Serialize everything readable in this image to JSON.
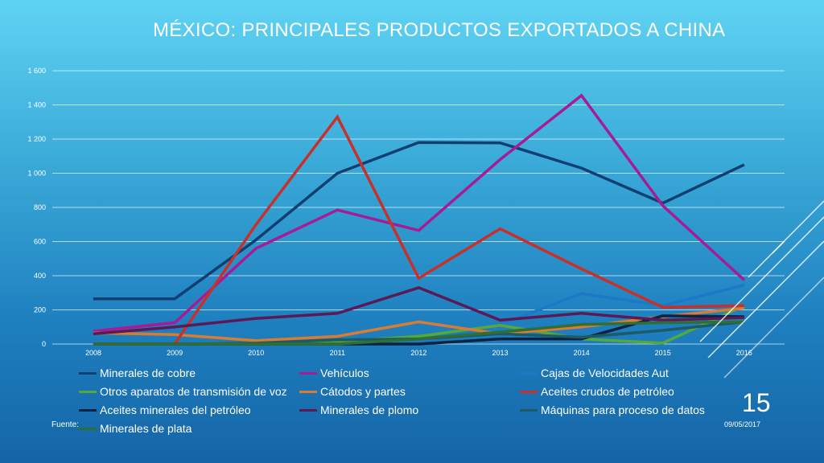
{
  "slide": {
    "title": "MÉXICO: PRINCIPALES PRODUCTOS EXPORTADOS A CHINA",
    "number": "15",
    "date": "09/05/2017",
    "source_label": "Fuente:"
  },
  "colors": {
    "background_top": "#5fd3f3",
    "background_bottom": "#1565a6",
    "gridline": "#ffffff"
  },
  "chart_data": {
    "type": "line",
    "title": "MÉXICO: PRINCIPALES PRODUCTOS EXPORTADOS A CHINA",
    "xlabel": "",
    "ylabel": "",
    "ylim": [
      0,
      1600
    ],
    "y_ticks": [
      "0",
      "200",
      "400",
      "600",
      "800",
      "1 000",
      "1 200",
      "1 400",
      "1 600"
    ],
    "y_tick_values": [
      0,
      200,
      400,
      600,
      800,
      1000,
      1200,
      1400,
      1600
    ],
    "grid": true,
    "legend_position": "bottom",
    "categories": [
      "2008",
      "2009",
      "2010",
      "2011",
      "2012",
      "2013",
      "2014",
      "2015",
      "2016"
    ],
    "series": [
      {
        "name": "Minerales de cobre",
        "color": "#123f72",
        "values": [
          265,
          265,
          610,
          1000,
          1180,
          1178,
          1030,
          825,
          1050
        ]
      },
      {
        "name": "Vehículos",
        "color": "#a51c96",
        "values": [
          75,
          125,
          560,
          785,
          665,
          1080,
          1455,
          810,
          375
        ]
      },
      {
        "name": "Cajas de Velocidades Aut",
        "color": "#1d78c8",
        "values": [
          0,
          0,
          0,
          0,
          0,
          115,
          295,
          225,
          345
        ]
      },
      {
        "name": "Otros aparatos de transmisión de voz",
        "color": "#56a83b",
        "values": [
          0,
          0,
          5,
          15,
          45,
          110,
          30,
          5,
          225
        ]
      },
      {
        "name": "Cátodos y partes",
        "color": "#d97c33",
        "values": [
          65,
          55,
          20,
          45,
          130,
          60,
          100,
          160,
          210
        ]
      },
      {
        "name": "Aceites crudos de petróleo",
        "color": "#c8302a",
        "values": [
          0,
          0,
          700,
          1330,
          385,
          675,
          440,
          215,
          225
        ]
      },
      {
        "name": "Aceites minerales del petróleo",
        "color": "#0d2240",
        "values": [
          0,
          0,
          0,
          0,
          0,
          30,
          30,
          165,
          160
        ]
      },
      {
        "name": "Minerales de plomo",
        "color": "#5a1a55",
        "values": [
          60,
          100,
          150,
          180,
          330,
          140,
          180,
          140,
          155
        ]
      },
      {
        "name": "Máquinas para proceso de datos",
        "color": "#1b5a66",
        "values": [
          0,
          0,
          5,
          25,
          30,
          60,
          40,
          80,
          130
        ]
      },
      {
        "name": "Minerales de plata",
        "color": "#2f6e35",
        "values": [
          0,
          0,
          0,
          0,
          30,
          70,
          115,
          125,
          130
        ]
      }
    ]
  }
}
